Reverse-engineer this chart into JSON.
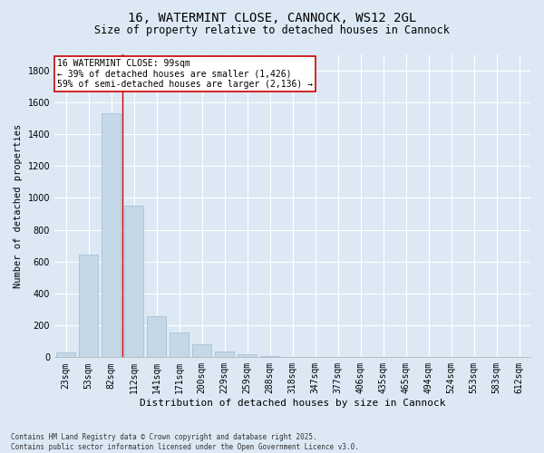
{
  "title": "16, WATERMINT CLOSE, CANNOCK, WS12 2GL",
  "subtitle": "Size of property relative to detached houses in Cannock",
  "xlabel": "Distribution of detached houses by size in Cannock",
  "ylabel": "Number of detached properties",
  "categories": [
    "23sqm",
    "53sqm",
    "82sqm",
    "112sqm",
    "141sqm",
    "171sqm",
    "200sqm",
    "229sqm",
    "259sqm",
    "288sqm",
    "318sqm",
    "347sqm",
    "377sqm",
    "406sqm",
    "435sqm",
    "465sqm",
    "494sqm",
    "524sqm",
    "553sqm",
    "583sqm",
    "612sqm"
  ],
  "values": [
    30,
    645,
    1530,
    950,
    260,
    155,
    80,
    35,
    18,
    5,
    2,
    1,
    0,
    0,
    0,
    0,
    0,
    0,
    0,
    0,
    0
  ],
  "bar_color": "#c5d8e8",
  "bar_edge_color": "#a0bbd0",
  "vline_color": "#cc0000",
  "annotation_text": "16 WATERMINT CLOSE: 99sqm\n← 39% of detached houses are smaller (1,426)\n59% of semi-detached houses are larger (2,136) →",
  "annotation_box_color": "#ffffff",
  "annotation_box_edge": "#cc0000",
  "bg_color": "#dce9f5",
  "plot_bg_color": "#dce9f5",
  "footer": "Contains HM Land Registry data © Crown copyright and database right 2025.\nContains public sector information licensed under the Open Government Licence v3.0.",
  "ylim": [
    0,
    1900
  ],
  "yticks": [
    0,
    200,
    400,
    600,
    800,
    1000,
    1200,
    1400,
    1600,
    1800
  ],
  "title_fontsize": 10,
  "subtitle_fontsize": 8.5,
  "xlabel_fontsize": 8,
  "ylabel_fontsize": 7.5,
  "tick_fontsize": 7,
  "footer_fontsize": 5.5,
  "annot_fontsize": 7
}
